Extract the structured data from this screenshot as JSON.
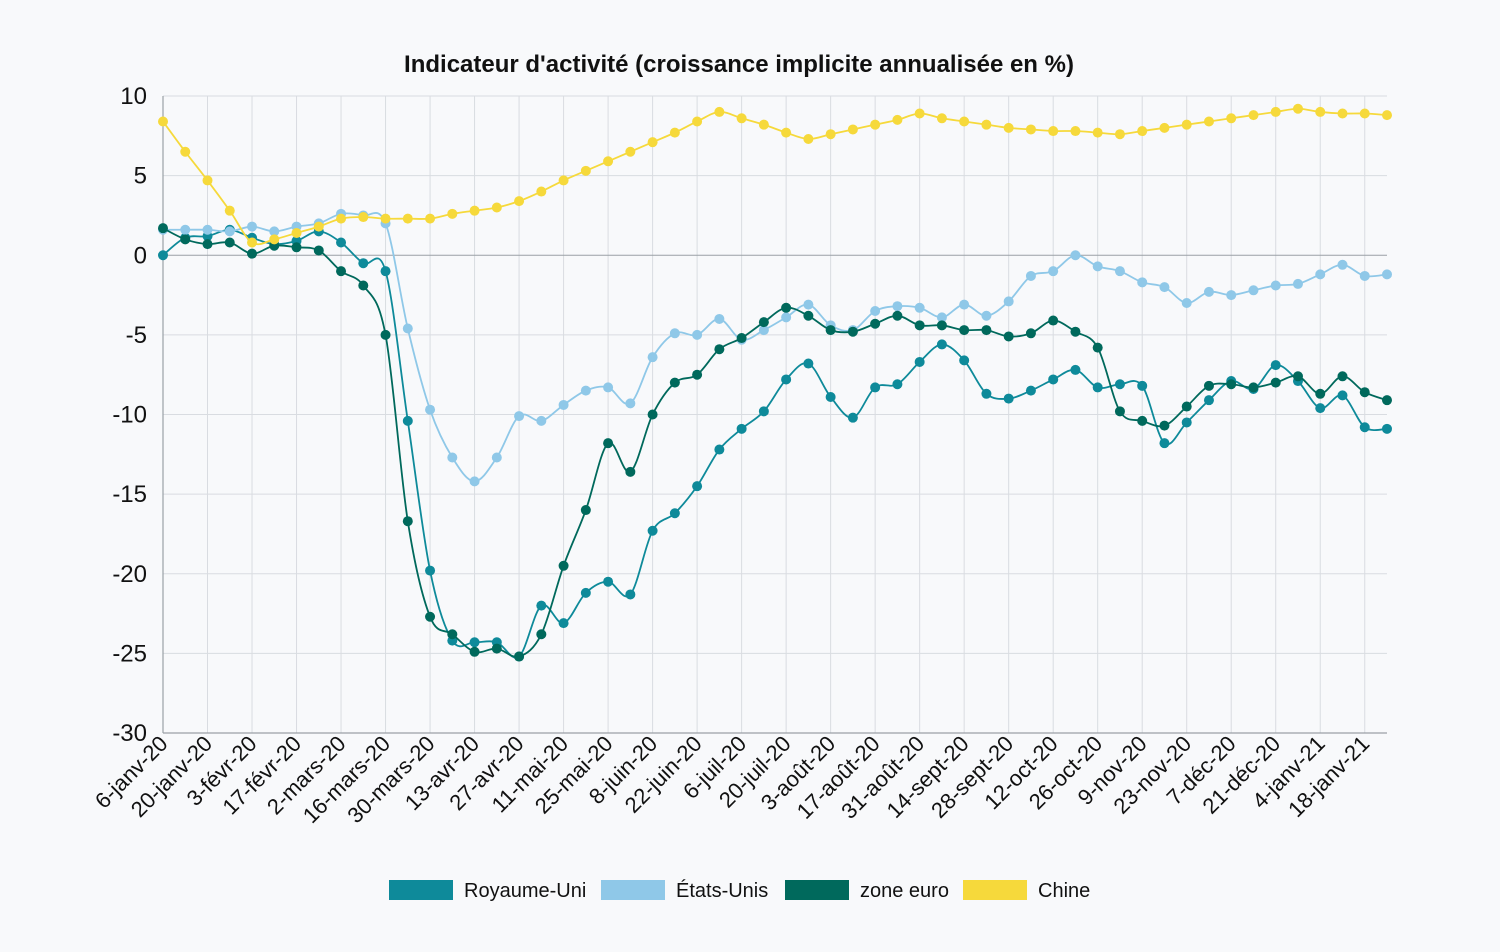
{
  "chart_data": {
    "type": "line",
    "title": "Indicateur d'activité (croissance implicite annualisée en %)",
    "xlabel": "",
    "ylabel": "",
    "ylim": [
      -30,
      10
    ],
    "yticks": [
      10,
      5,
      0,
      -5,
      -10,
      -15,
      -20,
      -25,
      -30
    ],
    "grid": true,
    "legend_position": "bottom",
    "categories": [
      "6-janv-20",
      "13-janv-20",
      "20-janv-20",
      "27-janv-20",
      "3-févr-20",
      "10-févr-20",
      "17-févr-20",
      "24-févr-20",
      "2-mars-20",
      "9-mars-20",
      "16-mars-20",
      "23-mars-20",
      "30-mars-20",
      "6-avr-20",
      "13-avr-20",
      "20-avr-20",
      "27-avr-20",
      "4-mai-20",
      "11-mai-20",
      "18-mai-20",
      "25-mai-20",
      "1-juin-20",
      "8-juin-20",
      "15-juin-20",
      "22-juin-20",
      "29-juin-20",
      "6-juil-20",
      "13-juil-20",
      "20-juil-20",
      "27-juil-20",
      "3-août-20",
      "10-août-20",
      "17-août-20",
      "24-août-20",
      "31-août-20",
      "7-sept-20",
      "14-sept-20",
      "21-sept-20",
      "28-sept-20",
      "5-oct-20",
      "12-oct-20",
      "19-oct-20",
      "26-oct-20",
      "2-nov-20",
      "9-nov-20",
      "16-nov-20",
      "23-nov-20",
      "30-nov-20",
      "7-déc-20",
      "14-déc-20",
      "21-déc-20",
      "28-déc-20",
      "4-janv-21",
      "11-janv-21",
      "18-janv-21",
      "25-janv-21"
    ],
    "tick_labels": [
      "6-janv-20",
      "20-janv-20",
      "3-févr-20",
      "17-févr-20",
      "2-mars-20",
      "16-mars-20",
      "30-mars-20",
      "13-avr-20",
      "27-avr-20",
      "11-mai-20",
      "25-mai-20",
      "8-juin-20",
      "22-juin-20",
      "6-juil-20",
      "20-juil-20",
      "3-août-20",
      "17-août-20",
      "31-août-20",
      "14-sept-20",
      "28-sept-20",
      "12-oct-20",
      "26-oct-20",
      "9-nov-20",
      "23-nov-20",
      "7-déc-20",
      "21-déc-20",
      "4-janv-21",
      "18-janv-21"
    ],
    "series": [
      {
        "name": "Royaume-Uni",
        "color": "#0e8a9a",
        "values": [
          0.0,
          1.1,
          1.2,
          1.6,
          1.1,
          0.7,
          0.9,
          1.5,
          0.8,
          -0.5,
          -1.0,
          -10.4,
          -19.8,
          -24.2,
          -24.3,
          -24.3,
          -25.2,
          -22.0,
          -23.1,
          -21.2,
          -20.5,
          -21.3,
          -17.3,
          -16.2,
          -14.5,
          -12.2,
          -10.9,
          -9.8,
          -7.8,
          -6.8,
          -8.9,
          -10.2,
          -8.3,
          -8.1,
          -6.7,
          -5.6,
          -6.6,
          -8.7,
          -9.0,
          -8.5,
          -7.8,
          -7.2,
          -8.3,
          -8.1,
          -8.2,
          -11.8,
          -10.5,
          -9.1,
          -7.9,
          -8.4,
          -6.9,
          -7.9,
          -9.6,
          -8.8,
          -10.8,
          -10.9
        ]
      },
      {
        "name": "États-Unis",
        "color": "#8fc8e8",
        "values": [
          1.6,
          1.6,
          1.6,
          1.5,
          1.8,
          1.5,
          1.8,
          2.0,
          2.6,
          2.5,
          2.0,
          -4.6,
          -9.7,
          -12.7,
          -14.2,
          -12.7,
          -10.1,
          -10.4,
          -9.4,
          -8.5,
          -8.3,
          -9.3,
          -6.4,
          -4.9,
          -5.0,
          -4.0,
          -5.3,
          -4.7,
          -3.9,
          -3.1,
          -4.4,
          -4.7,
          -3.5,
          -3.2,
          -3.3,
          -3.9,
          -3.1,
          -3.8,
          -2.9,
          -1.3,
          -1.0,
          0.0,
          -0.7,
          -1.0,
          -1.7,
          -2.0,
          -3.0,
          -2.3,
          -2.5,
          -2.2,
          -1.9,
          -1.8,
          -1.2,
          -0.6,
          -1.3,
          -1.2
        ]
      },
      {
        "name": "zone euro",
        "color": "#00695c",
        "values": [
          1.7,
          1.0,
          0.7,
          0.8,
          0.1,
          0.6,
          0.5,
          0.3,
          -1.0,
          -1.9,
          -5.0,
          -16.7,
          -22.7,
          -23.8,
          -24.9,
          -24.7,
          -25.2,
          -23.8,
          -19.5,
          -16.0,
          -11.8,
          -13.6,
          -10.0,
          -8.0,
          -7.5,
          -5.9,
          -5.2,
          -4.2,
          -3.3,
          -3.8,
          -4.7,
          -4.8,
          -4.3,
          -3.8,
          -4.4,
          -4.4,
          -4.7,
          -4.7,
          -5.1,
          -4.9,
          -4.1,
          -4.8,
          -5.8,
          -9.8,
          -10.4,
          -10.7,
          -9.5,
          -8.2,
          -8.1,
          -8.3,
          -8.0,
          -7.6,
          -8.7,
          -7.6,
          -8.6,
          -9.1
        ]
      },
      {
        "name": "Chine",
        "color": "#f6d93b",
        "values": [
          8.4,
          6.5,
          4.7,
          2.8,
          0.8,
          1.0,
          1.4,
          1.8,
          2.3,
          2.4,
          2.3,
          2.3,
          2.3,
          2.6,
          2.8,
          3.0,
          3.4,
          4.0,
          4.7,
          5.3,
          5.9,
          6.5,
          7.1,
          7.7,
          8.4,
          9.0,
          8.6,
          8.2,
          7.7,
          7.3,
          7.6,
          7.9,
          8.2,
          8.5,
          8.9,
          8.6,
          8.4,
          8.2,
          8.0,
          7.9,
          7.8,
          7.8,
          7.7,
          7.6,
          7.8,
          8.0,
          8.2,
          8.4,
          8.6,
          8.8,
          9.0,
          9.2,
          9.0,
          8.9,
          8.9,
          8.8
        ]
      }
    ]
  }
}
